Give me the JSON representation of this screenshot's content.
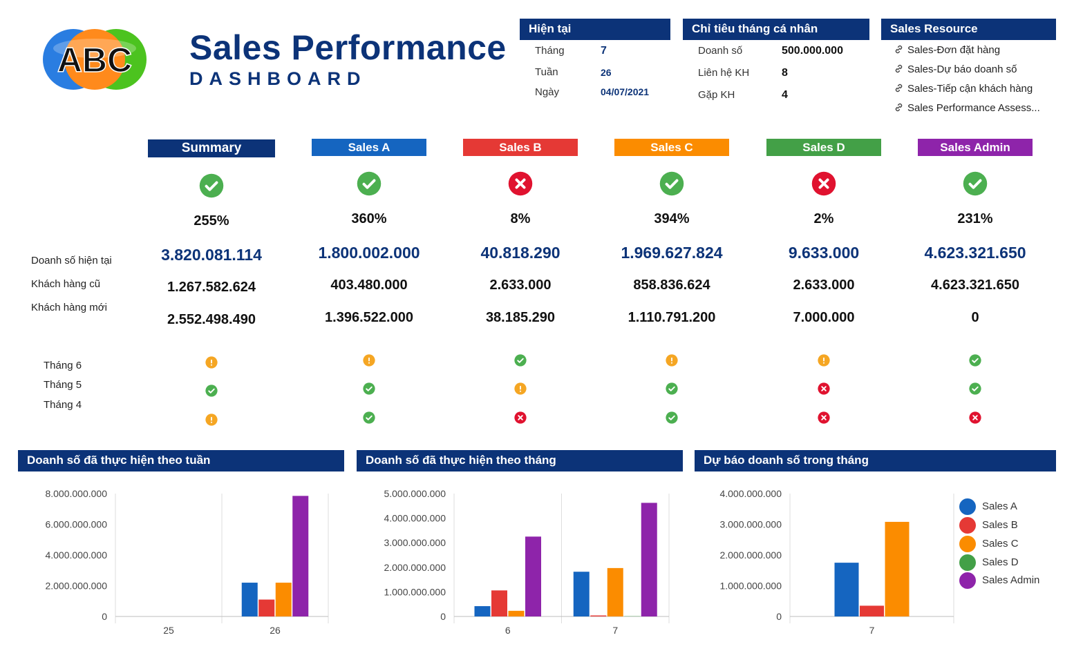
{
  "header": {
    "logo_text": "ABC",
    "title": "Sales Performance",
    "subtitle": "DASHBOARD"
  },
  "current": {
    "title": "Hiện tại",
    "rows": [
      {
        "label": "Tháng",
        "value": "7"
      },
      {
        "label": "Tuần",
        "value": "26"
      },
      {
        "label": "Ngày",
        "value": "04/07/2021"
      }
    ]
  },
  "targets": {
    "title": "Chỉ tiêu tháng cá nhân",
    "rows": [
      {
        "label": "Doanh số",
        "value": "500.000.000"
      },
      {
        "label": "Liên hệ KH",
        "value": "8"
      },
      {
        "label": "Gặp KH",
        "value": "4"
      }
    ]
  },
  "resources": {
    "title": "Sales Resource",
    "links": [
      "Sales-Đơn đặt hàng",
      "Sales-Dự báo doanh số",
      "Sales-Tiếp cận khách hàng",
      "Sales Performance Assess..."
    ]
  },
  "row_labels": {
    "revenue": "Doanh số hiện tại",
    "old_customers": "Khách hàng cũ",
    "new_customers": "Khách hàng mới"
  },
  "month_labels": [
    "Tháng 6",
    "Tháng 5",
    "Tháng 4"
  ],
  "columns": [
    {
      "name": "Summary",
      "color": "#0c3378",
      "status": "ok",
      "pct": "255%",
      "revenue": "3.820.081.114",
      "old": "1.267.582.624",
      "new": "2.552.498.490",
      "months": [
        "warn",
        "ok",
        "warn"
      ]
    },
    {
      "name": "Sales A",
      "color": "#1565c0",
      "status": "ok",
      "pct": "360%",
      "revenue": "1.800.002.000",
      "old": "403.480.000",
      "new": "1.396.522.000",
      "months": [
        "warn",
        "ok",
        "ok"
      ]
    },
    {
      "name": "Sales B",
      "color": "#e53935",
      "status": "fail",
      "pct": "8%",
      "revenue": "40.818.290",
      "old": "2.633.000",
      "new": "38.185.290",
      "months": [
        "ok",
        "warn",
        "fail"
      ]
    },
    {
      "name": "Sales C",
      "color": "#fb8c00",
      "status": "ok",
      "pct": "394%",
      "revenue": "1.969.627.824",
      "old": "858.836.624",
      "new": "1.110.791.200",
      "months": [
        "warn",
        "ok",
        "ok"
      ]
    },
    {
      "name": "Sales D",
      "color": "#43a047",
      "status": "fail",
      "pct": "2%",
      "revenue": "9.633.000",
      "old": "2.633.000",
      "new": "7.000.000",
      "months": [
        "warn",
        "fail",
        "fail"
      ]
    },
    {
      "name": "Sales Admin",
      "color": "#8e24aa",
      "status": "ok",
      "pct": "231%",
      "revenue": "4.623.321.650",
      "old": "4.623.321.650",
      "new": "0",
      "months": [
        "ok",
        "ok",
        "fail"
      ]
    }
  ],
  "colors": {
    "navy": "#0c3378",
    "ok": "#4caf50",
    "fail": "#e0122f",
    "warn": "#f5a623",
    "sales_a": "#1565c0",
    "sales_b": "#e53935",
    "sales_c": "#fb8c00",
    "sales_d": "#43a047",
    "sales_admin": "#8e24aa"
  },
  "legend": [
    "Sales A",
    "Sales B",
    "Sales C",
    "Sales D",
    "Sales Admin"
  ],
  "chart_data": [
    {
      "type": "bar",
      "title": "Doanh số đã thực hiện theo tuần",
      "categories": [
        "25",
        "26"
      ],
      "yticks": [
        "0",
        "2.000.000.000",
        "4.000.000.000",
        "6.000.000.000",
        "8.000.000.000"
      ],
      "ylim": [
        0,
        8000000000
      ],
      "series": [
        {
          "name": "Sales A",
          "values": [
            0,
            2200000000
          ]
        },
        {
          "name": "Sales B",
          "values": [
            0,
            1100000000
          ]
        },
        {
          "name": "Sales C",
          "values": [
            0,
            2200000000
          ]
        },
        {
          "name": "Sales D",
          "values": [
            0,
            0
          ]
        },
        {
          "name": "Sales Admin",
          "values": [
            0,
            7850000000
          ]
        }
      ]
    },
    {
      "type": "bar",
      "title": "Doanh số đã thực hiện theo tháng",
      "categories": [
        "6",
        "7"
      ],
      "yticks": [
        "0",
        "1.000.000.000",
        "2.000.000.000",
        "3.000.000.000",
        "4.000.000.000",
        "5.000.000.000"
      ],
      "ylim": [
        0,
        5000000000
      ],
      "series": [
        {
          "name": "Sales A",
          "values": [
            420000000,
            1820000000
          ]
        },
        {
          "name": "Sales B",
          "values": [
            1060000000,
            40818290
          ]
        },
        {
          "name": "Sales C",
          "values": [
            230000000,
            1970000000
          ]
        },
        {
          "name": "Sales D",
          "values": [
            0,
            9633000
          ]
        },
        {
          "name": "Sales Admin",
          "values": [
            3250000000,
            4623321650
          ]
        }
      ]
    },
    {
      "type": "bar",
      "title": "Dự báo doanh số trong tháng",
      "categories": [
        "7"
      ],
      "yticks": [
        "0",
        "1.000.000.000",
        "2.000.000.000",
        "3.000.000.000",
        "4.000.000.000"
      ],
      "ylim": [
        0,
        4000000000
      ],
      "series": [
        {
          "name": "Sales A",
          "values": [
            1750000000
          ]
        },
        {
          "name": "Sales B",
          "values": [
            350000000
          ]
        },
        {
          "name": "Sales C",
          "values": [
            3080000000
          ]
        },
        {
          "name": "Sales D",
          "values": [
            0
          ]
        },
        {
          "name": "Sales Admin",
          "values": [
            0
          ]
        }
      ]
    }
  ]
}
